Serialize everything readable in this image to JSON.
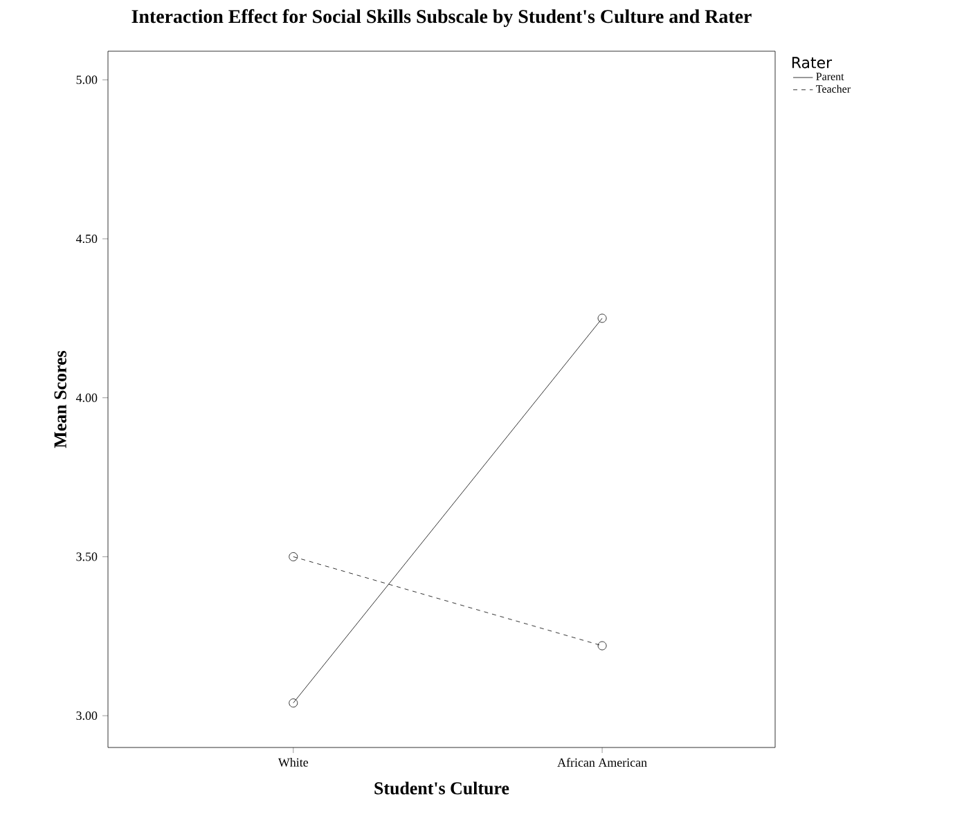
{
  "chart_data": {
    "type": "line",
    "title": "Interaction Effect for Social Skills Subscale by Student's Culture and Rater",
    "xlabel": "Student's Culture",
    "ylabel": "Mean Scores",
    "legend_title": "Rater",
    "categories": [
      "White",
      "African American"
    ],
    "series": [
      {
        "name": "Parent",
        "color": "#000000",
        "line_style": "solid",
        "values": [
          3.04,
          4.25
        ]
      },
      {
        "name": "Teacher",
        "color": "#000000",
        "line_style": "dashed",
        "values": [
          3.5,
          3.22
        ]
      }
    ],
    "ylim": [
      2.9,
      5.09
    ],
    "yticks": [
      {
        "value": 3,
        "label": "3.00"
      },
      {
        "value": 3.5,
        "label": "3.50"
      },
      {
        "value": 4,
        "label": "4.00"
      },
      {
        "value": 4.5,
        "label": "4.50"
      },
      {
        "value": 5,
        "label": "5.00"
      }
    ],
    "marker": "circle",
    "grid": false,
    "legend": "top right"
  }
}
